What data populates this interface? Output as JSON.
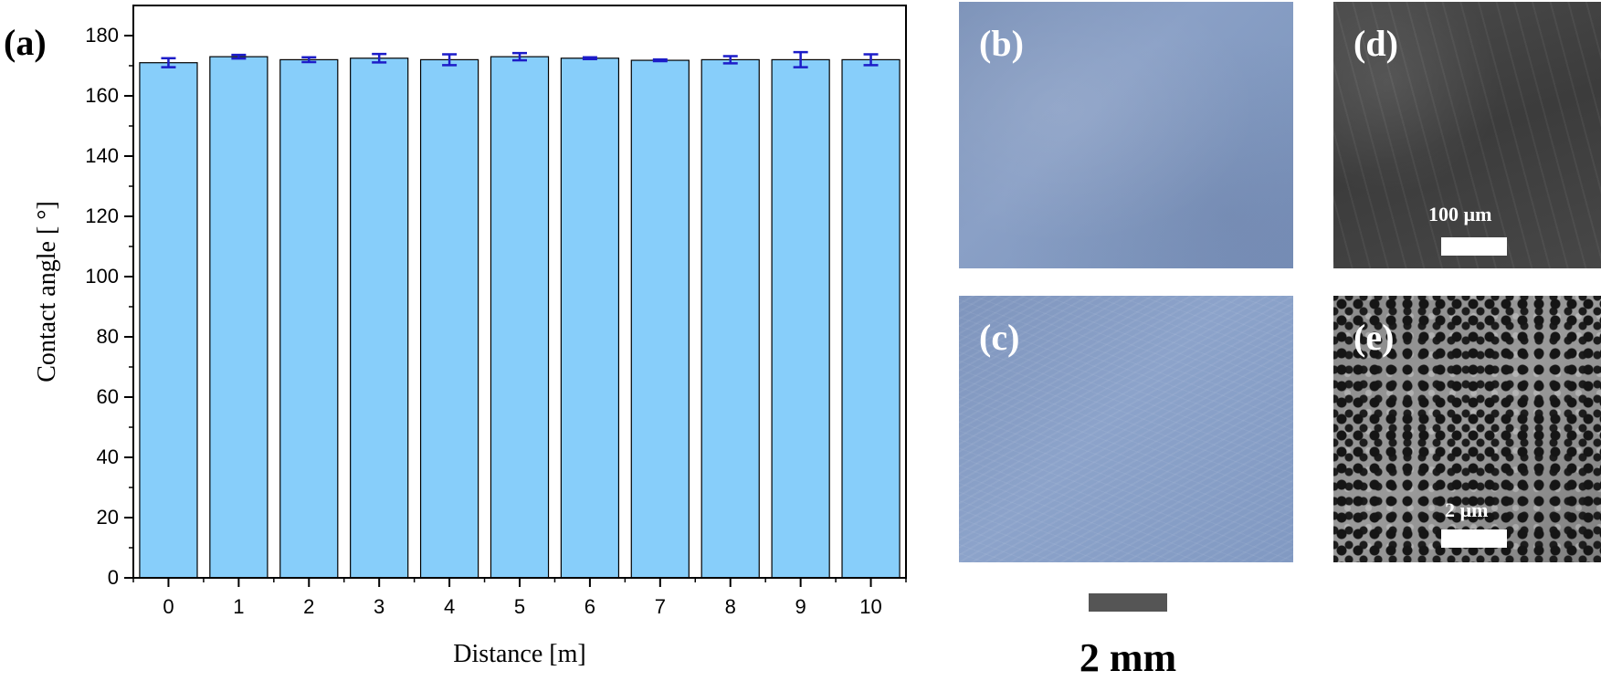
{
  "chart_data": {
    "type": "bar",
    "panel_label": "(a)",
    "categories": [
      "0",
      "1",
      "2",
      "3",
      "4",
      "5",
      "6",
      "7",
      "8",
      "9",
      "10"
    ],
    "values": [
      171,
      173,
      172,
      172.5,
      172,
      173,
      172.5,
      171.8,
      172,
      172,
      172
    ],
    "errors": [
      1.5,
      0.6,
      0.8,
      1.4,
      1.8,
      1.2,
      0.3,
      0.3,
      1.2,
      2.5,
      1.8
    ],
    "xlabel": "Distance [m]",
    "ylabel": "Contact angle [ °]",
    "ylim": [
      0,
      190
    ],
    "yticks": [
      0,
      20,
      40,
      60,
      80,
      100,
      120,
      140,
      160,
      180
    ],
    "bar_color": "#87cefa",
    "error_bar_color": "#1c1cc8",
    "grid": false
  },
  "images": [
    {
      "label": "(b)"
    },
    {
      "label": "(c)"
    },
    {
      "label": "(d)",
      "scale_label": "100 µm"
    },
    {
      "label": "(e)",
      "scale_label": "2 µm"
    }
  ],
  "scale": {
    "label": "2 mm",
    "bar_color": "#555555"
  }
}
